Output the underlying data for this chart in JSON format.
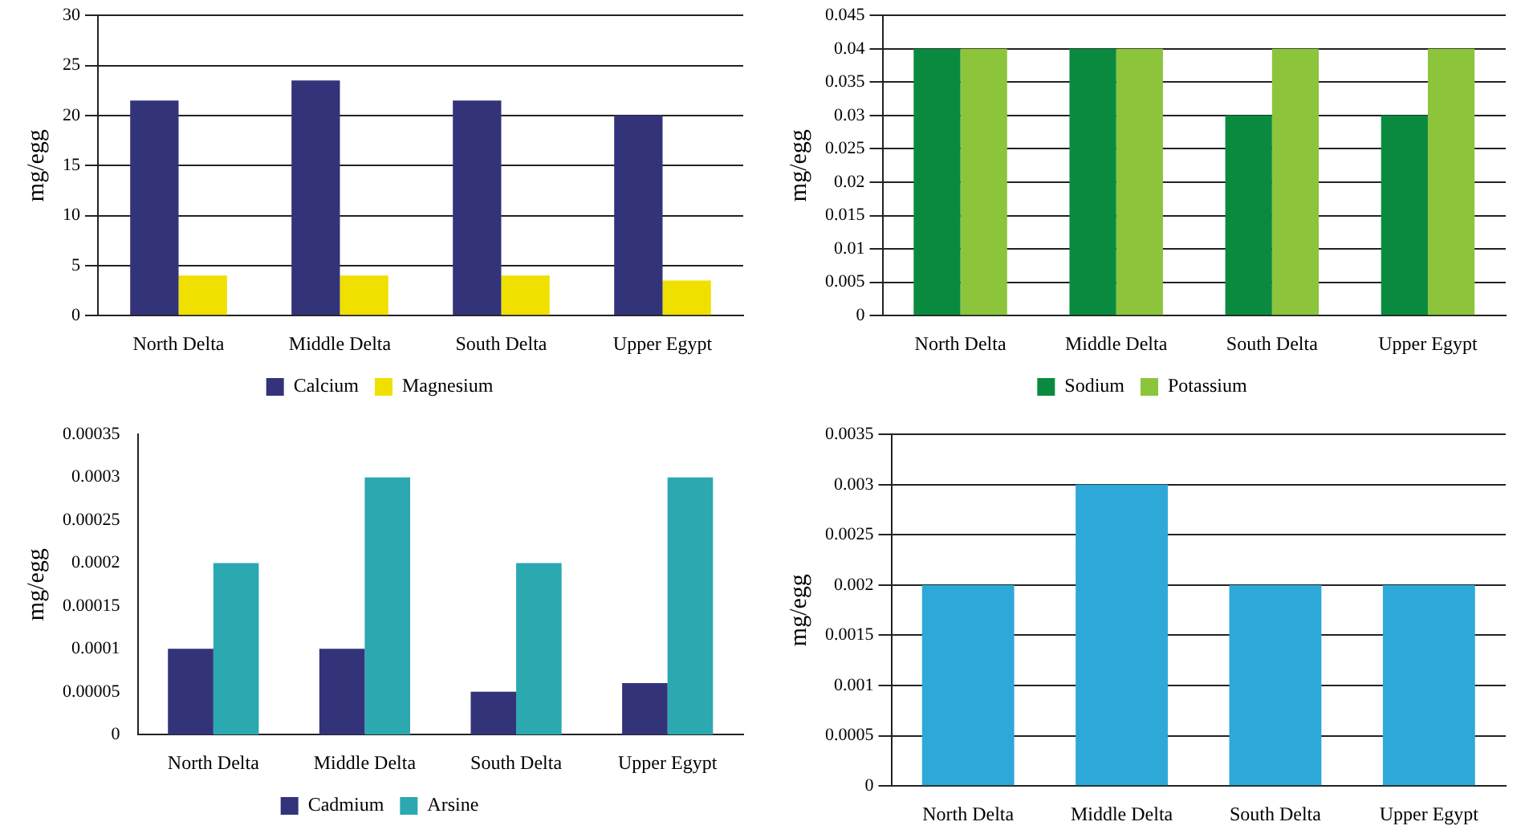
{
  "chart_data": [
    {
      "type": "bar",
      "ylabel": "mg/egg",
      "categories": [
        "North Delta",
        "Middle Delta",
        "South Delta",
        "Upper Egypt"
      ],
      "series": [
        {
          "name": "Calcium",
          "color": "#33337a",
          "values": [
            21.5,
            23.5,
            21.5,
            20
          ]
        },
        {
          "name": "Magnesium",
          "color": "#f0e000",
          "values": [
            4,
            4,
            4,
            3.5
          ]
        }
      ],
      "ylim": [
        0,
        30
      ],
      "yticks": [
        0,
        5,
        10,
        15,
        20,
        25,
        30
      ],
      "grid": "y",
      "legend": "bottom"
    },
    {
      "type": "bar",
      "ylabel": "mg/egg",
      "categories": [
        "North Delta",
        "Middle Delta",
        "South Delta",
        "Upper Egypt"
      ],
      "series": [
        {
          "name": "Sodium",
          "color": "#0a8a3e",
          "values": [
            0.04,
            0.04,
            0.03,
            0.03
          ]
        },
        {
          "name": "Potassium",
          "color": "#8cc43c",
          "values": [
            0.04,
            0.04,
            0.04,
            0.04
          ]
        }
      ],
      "ylim": [
        0,
        0.045
      ],
      "yticks": [
        0,
        0.005,
        0.01,
        0.015,
        0.02,
        0.025,
        0.03,
        0.035,
        0.04,
        0.045
      ],
      "grid": "y",
      "legend": "bottom"
    },
    {
      "type": "bar",
      "ylabel": "mg/egg",
      "categories": [
        "North Delta",
        "Middle Delta",
        "South Delta",
        "Upper Egypt"
      ],
      "series": [
        {
          "name": "Cadmium",
          "color": "#33337a",
          "values": [
            0.0001,
            0.0001,
            5e-05,
            6e-05
          ]
        },
        {
          "name": "Arsine",
          "color": "#2ba8b0",
          "values": [
            0.0002,
            0.0003,
            0.0002,
            0.0003
          ]
        }
      ],
      "ylim": [
        0,
        0.00035
      ],
      "yticks": [
        0,
        {
          "value": 5e-05,
          "label": "0.00005"
        },
        0.0001,
        0.00015,
        0.0002,
        0.00025,
        0.0003,
        0.00035
      ],
      "grid": false,
      "legend": "bottom"
    },
    {
      "type": "bar",
      "ylabel": "mg/egg",
      "categories": [
        "North Delta",
        "Middle Delta",
        "South Delta",
        "Upper Egypt"
      ],
      "series": [
        {
          "color": "#2ea8d8",
          "values": [
            0.002,
            0.003,
            0.002,
            0.002
          ]
        }
      ],
      "ylim": [
        0,
        0.0035
      ],
      "yticks": [
        0,
        0.0005,
        0.001,
        0.0015,
        0.002,
        0.0025,
        0.003,
        0.0035
      ],
      "grid": "y"
    }
  ]
}
